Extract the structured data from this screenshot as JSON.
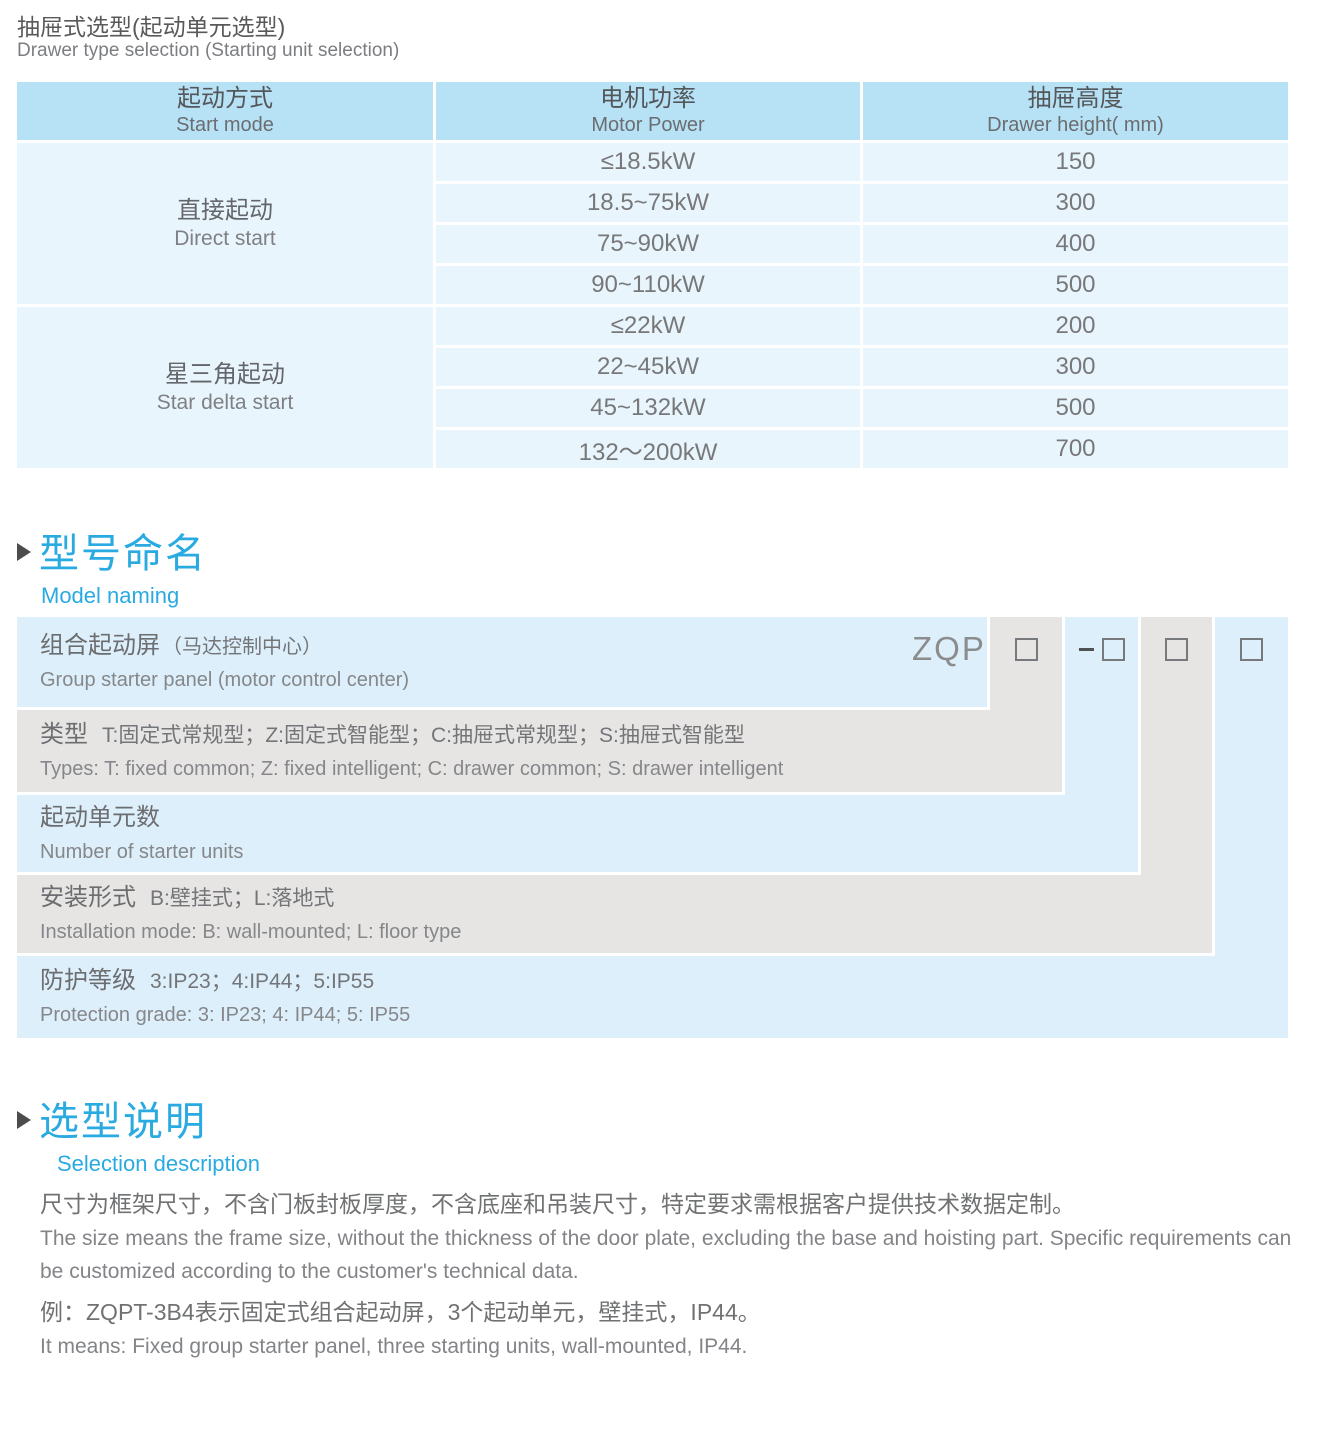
{
  "page": {
    "title_cn": "抽屉式选型(起动单元选型)",
    "title_en": "Drawer type selection (Starting unit selection)"
  },
  "colors": {
    "accent_blue": "#29aae1",
    "table_header_blue": "#b7e2f6",
    "table_cell_blue": "#e9f5fd",
    "diagram_blue": "#ddeffa",
    "diagram_gray": "#e6e5e4"
  },
  "selection_table": {
    "headers": [
      {
        "cn": "起动方式",
        "en": "Start mode"
      },
      {
        "cn": "电机功率",
        "en": "Motor Power"
      },
      {
        "cn": "抽屉高度",
        "en": "Drawer height( mm)"
      }
    ],
    "groups": [
      {
        "mode_cn": "直接起动",
        "mode_en": "Direct start",
        "rows": [
          {
            "power": "≤18.5kW",
            "height": "150"
          },
          {
            "power": "18.5~75kW",
            "height": "300"
          },
          {
            "power": "75~90kW",
            "height": "400"
          },
          {
            "power": "90~110kW",
            "height": "500"
          }
        ]
      },
      {
        "mode_cn": "星三角起动",
        "mode_en": "Star delta start",
        "rows": [
          {
            "power": "≤22kW",
            "height": "200"
          },
          {
            "power": "22~45kW",
            "height": "300"
          },
          {
            "power": "45~132kW",
            "height": "500"
          },
          {
            "power": "132～200kW",
            "height": "700"
          }
        ]
      }
    ]
  },
  "model_naming": {
    "heading_cn": "型号命名",
    "heading_en": "Model naming",
    "code_prefix": "ZQP",
    "levels": [
      {
        "label_cn": "组合起动屏",
        "detail_cn": "（马达控制中心）",
        "en": "Group starter panel (motor control center)"
      },
      {
        "label_cn": "类型",
        "detail_cn": "T:固定式常规型；Z:固定式智能型；C:抽屉式常规型；S:抽屉式智能型",
        "en": "Types: T: fixed common; Z: fixed intelligent; C: drawer common; S: drawer intelligent"
      },
      {
        "label_cn": "起动单元数",
        "detail_cn": "",
        "en": "Number of starter units"
      },
      {
        "label_cn": "安装形式",
        "detail_cn": "B:壁挂式；L:落地式",
        "en": "Installation mode: B: wall-mounted; L: floor type"
      },
      {
        "label_cn": "防护等级",
        "detail_cn": "3:IP23；4:IP44；5:IP55",
        "en": "Protection grade: 3: IP23; 4: IP44; 5: IP55"
      }
    ]
  },
  "selection_desc": {
    "heading_cn": "选型说明",
    "heading_en": "Selection description",
    "body_cn": "尺寸为框架尺寸，不含门板封板厚度，不含底座和吊装尺寸，特定要求需根据客户提供技术数据定制。",
    "body_en": "The size means the frame size, without the thickness of the door plate, excluding the base and hoisting part. Specific requirements can be customized according to the customer's technical data.",
    "example_cn": "例：ZQPT-3B4表示固定式组合起动屏，3个起动单元，壁挂式，IP44。",
    "example_en": "It means: Fixed group starter panel, three starting units, wall-mounted, IP44."
  }
}
